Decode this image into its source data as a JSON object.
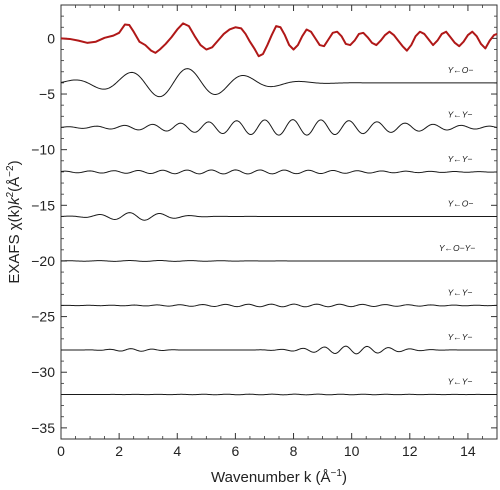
{
  "chart_data": {
    "type": "line",
    "title": "",
    "xlabel_parts": [
      "Wavenumber k (",
      "Å",
      "−1",
      ")"
    ],
    "ylabel_parts": [
      "EXAFS χ(k)",
      "k",
      "2",
      "(",
      "Å",
      "−2",
      ")"
    ],
    "xlim": [
      0,
      15
    ],
    "ylim": [
      -36,
      3
    ],
    "x_ticks": [
      0,
      2,
      4,
      6,
      8,
      10,
      12,
      14
    ],
    "y_ticks": [
      0,
      -5,
      -10,
      -15,
      -20,
      -25,
      -30,
      -35
    ],
    "grid": false,
    "colors": {
      "total": "#b01818",
      "paths": "#1a1a1a",
      "frame": "#333333"
    },
    "series": [
      {
        "role": "total",
        "offset": 0,
        "label": "",
        "label_x": null,
        "points": [
          [
            0,
            0
          ],
          [
            0.3,
            -0.05
          ],
          [
            0.6,
            -0.2
          ],
          [
            0.9,
            -0.4
          ],
          [
            1.2,
            -0.3
          ],
          [
            1.5,
            0.05
          ],
          [
            1.8,
            0.25
          ],
          [
            2.0,
            0.5
          ],
          [
            2.2,
            1.25
          ],
          [
            2.35,
            1.2
          ],
          [
            2.5,
            0.6
          ],
          [
            2.7,
            -0.3
          ],
          [
            2.9,
            -0.6
          ],
          [
            3.1,
            -1.1
          ],
          [
            3.25,
            -1.3
          ],
          [
            3.4,
            -1.0
          ],
          [
            3.6,
            -0.5
          ],
          [
            3.8,
            0.1
          ],
          [
            4.0,
            0.8
          ],
          [
            4.2,
            1.35
          ],
          [
            4.4,
            1.1
          ],
          [
            4.6,
            0.2
          ],
          [
            4.8,
            -0.6
          ],
          [
            5.0,
            -1.0
          ],
          [
            5.2,
            -0.8
          ],
          [
            5.4,
            -0.2
          ],
          [
            5.6,
            0.4
          ],
          [
            5.8,
            0.8
          ],
          [
            6.0,
            1.0
          ],
          [
            6.2,
            0.9
          ],
          [
            6.35,
            0.4
          ],
          [
            6.5,
            -0.3
          ],
          [
            6.65,
            -0.9
          ],
          [
            6.8,
            -1.6
          ],
          [
            6.95,
            -1.4
          ],
          [
            7.1,
            -0.6
          ],
          [
            7.25,
            0.3
          ],
          [
            7.4,
            1.1
          ],
          [
            7.55,
            1.0
          ],
          [
            7.7,
            0.3
          ],
          [
            7.85,
            -0.6
          ],
          [
            8.0,
            -1.0
          ],
          [
            8.15,
            -0.6
          ],
          [
            8.3,
            0.2
          ],
          [
            8.45,
            0.8
          ],
          [
            8.6,
            0.6
          ],
          [
            8.75,
            0.0
          ],
          [
            8.9,
            -0.6
          ],
          [
            9.05,
            -0.7
          ],
          [
            9.2,
            -0.1
          ],
          [
            9.35,
            0.5
          ],
          [
            9.5,
            0.6
          ],
          [
            9.65,
            0.2
          ],
          [
            9.8,
            -0.5
          ],
          [
            9.95,
            -0.6
          ],
          [
            10.1,
            -0.2
          ],
          [
            10.25,
            0.4
          ],
          [
            10.4,
            0.5
          ],
          [
            10.55,
            0.1
          ],
          [
            10.7,
            -0.4
          ],
          [
            10.85,
            -0.6
          ],
          [
            11.0,
            -0.2
          ],
          [
            11.15,
            0.3
          ],
          [
            11.3,
            0.6
          ],
          [
            11.45,
            0.3
          ],
          [
            11.6,
            -0.2
          ],
          [
            11.75,
            -0.7
          ],
          [
            11.9,
            -1.1
          ],
          [
            12.05,
            -0.6
          ],
          [
            12.2,
            0.2
          ],
          [
            12.35,
            0.6
          ],
          [
            12.5,
            0.4
          ],
          [
            12.65,
            -0.1
          ],
          [
            12.8,
            -0.6
          ],
          [
            12.95,
            -0.2
          ],
          [
            13.1,
            0.4
          ],
          [
            13.25,
            0.6
          ],
          [
            13.4,
            0.1
          ],
          [
            13.55,
            -0.4
          ],
          [
            13.7,
            -0.7
          ],
          [
            13.85,
            -0.3
          ],
          [
            14.0,
            0.3
          ],
          [
            14.15,
            0.6
          ],
          [
            14.3,
            0.2
          ],
          [
            14.45,
            -0.5
          ],
          [
            14.6,
            -0.9
          ],
          [
            14.75,
            -0.2
          ],
          [
            14.9,
            0.3
          ],
          [
            15.0,
            0.4
          ]
        ]
      },
      {
        "role": "path",
        "offset": -4,
        "label": "Y←O−",
        "label_x": 13.3,
        "components": [
          {
            "amp": 1.3,
            "freq": 3.2,
            "phase": 0.2,
            "center": 4.0,
            "width": 2.8
          }
        ]
      },
      {
        "role": "path",
        "offset": -8,
        "label": "Y←Y−",
        "label_x": 13.3,
        "components": [
          {
            "amp": 0.7,
            "freq": 6.5,
            "phase": 0.0,
            "center": 8.0,
            "width": 5.0
          }
        ]
      },
      {
        "role": "path",
        "offset": -12,
        "label": "Y←Y−",
        "label_x": 13.3,
        "components": [
          {
            "amp": 0.18,
            "freq": 7.5,
            "phase": 0.5,
            "center": 6.0,
            "width": 6.0
          }
        ]
      },
      {
        "role": "path",
        "offset": -16,
        "label": "Y←O−",
        "label_x": 13.3,
        "components": [
          {
            "amp": 0.35,
            "freq": 6.0,
            "phase": 0.0,
            "center": 2.6,
            "width": 1.5
          }
        ]
      },
      {
        "role": "path",
        "offset": -20,
        "label": "Y←O−Y−",
        "label_x": 13.0,
        "components": [
          {
            "amp": 0.04,
            "freq": 6.0,
            "phase": 0.0,
            "center": 3.0,
            "width": 3.0
          }
        ]
      },
      {
        "role": "path",
        "offset": -24,
        "label": "Y←Y−",
        "label_x": 13.3,
        "components": [
          {
            "amp": 0.12,
            "freq": 8.0,
            "phase": 0.3,
            "center": 8.0,
            "width": 5.0
          }
        ]
      },
      {
        "role": "path",
        "offset": -28,
        "label": "Y←Y−",
        "label_x": 13.3,
        "components": [
          {
            "amp": 0.35,
            "freq": 8.5,
            "phase": 0.0,
            "center": 10.0,
            "width": 1.8
          },
          {
            "amp": 0.12,
            "freq": 8.5,
            "phase": 0.0,
            "center": 2.5,
            "width": 1.0
          }
        ]
      },
      {
        "role": "path",
        "offset": -32,
        "label": "Y←Y−",
        "label_x": 13.3,
        "components": [
          {
            "amp": 0.03,
            "freq": 8.0,
            "phase": 0.0,
            "center": 8.0,
            "width": 5.0
          }
        ]
      }
    ]
  }
}
